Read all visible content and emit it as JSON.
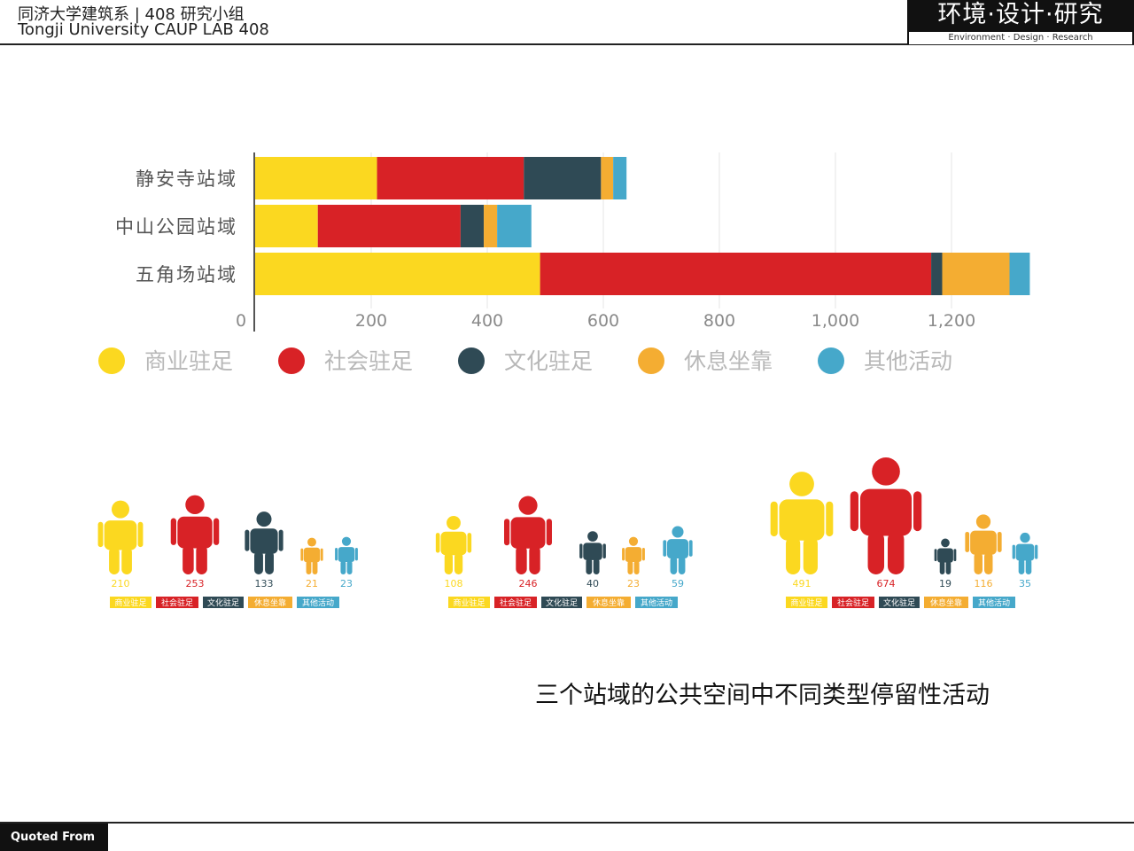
{
  "header": {
    "cn": "同济大学建筑系 |  408 研究小组",
    "en": "Tongji University CAUP   LAB 408",
    "logo_cn": "环境·设计·研究",
    "logo_en": "Environment · Design · Research"
  },
  "caption": "三个站域的公共空间中不同类型停留性活动",
  "footer": {
    "label": "Quoted From"
  },
  "colors": {
    "商业驻足": "#fbd820",
    "社会驻足": "#d82226",
    "文化驻足": "#2f4a55",
    "休息坐靠": "#f4ad32",
    "其他活动": "#46a8ca"
  },
  "chart_data": [
    {
      "type": "bar",
      "orientation": "horizontal",
      "stacked": true,
      "categories": [
        "静安寺站域",
        "中山公园站域",
        "五角场站域"
      ],
      "series": [
        {
          "name": "商业驻足",
          "values": [
            210,
            108,
            491
          ]
        },
        {
          "name": "社会驻足",
          "values": [
            253,
            246,
            674
          ]
        },
        {
          "name": "文化驻足",
          "values": [
            133,
            40,
            19
          ]
        },
        {
          "name": "休息坐靠",
          "values": [
            21,
            23,
            116
          ]
        },
        {
          "name": "其他活动",
          "values": [
            23,
            59,
            35
          ]
        }
      ],
      "xticks": [
        "0",
        "200",
        "400",
        "600",
        "800",
        "1,000",
        "1,200"
      ],
      "xlim": [
        0,
        1400
      ],
      "grid": true,
      "legend": "bottom"
    },
    {
      "type": "pictogram",
      "groups": [
        {
          "values": [
            210,
            253,
            133,
            21,
            23
          ],
          "labels": [
            "210",
            "253",
            "133",
            "21",
            "23"
          ],
          "legend": [
            "商业驻足",
            "社会驻足",
            "文化驻足",
            "休息坐靠",
            "其他活动"
          ]
        },
        {
          "values": [
            108,
            246,
            40,
            23,
            59
          ],
          "labels": [
            "108",
            "246",
            "40",
            "23",
            "59"
          ],
          "legend": [
            "商业驻足",
            "社会驻足",
            "文化驻足",
            "休息坐靠",
            "其他活动"
          ]
        },
        {
          "values": [
            491,
            674,
            19,
            116,
            35
          ],
          "labels": [
            "491",
            "674",
            "19",
            "116",
            "35"
          ],
          "legend": [
            "商业驻足",
            "社会驻足",
            "文化驻足",
            "休息坐靠",
            "其他活动"
          ]
        }
      ]
    }
  ]
}
